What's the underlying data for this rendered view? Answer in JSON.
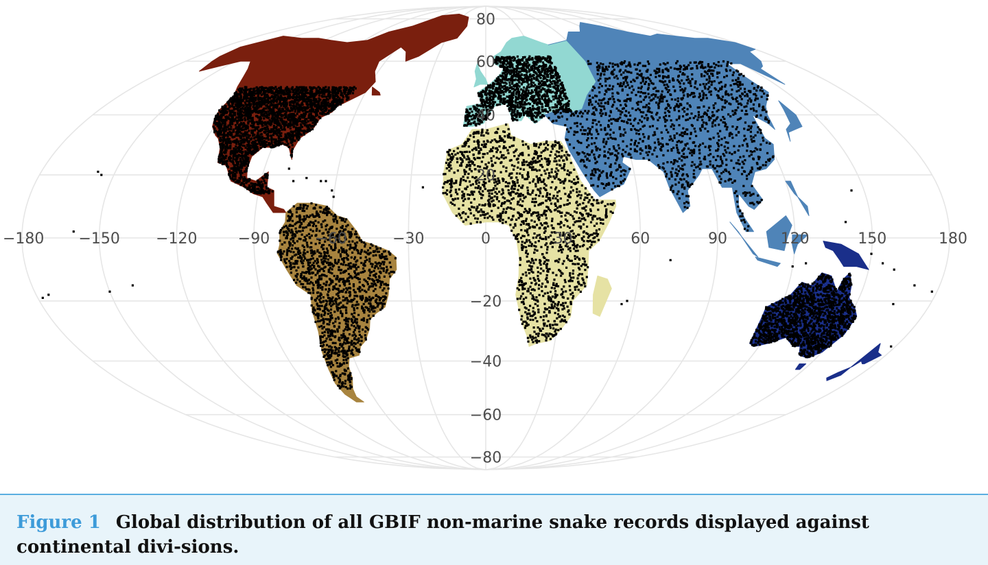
{
  "figure": {
    "label": "Figure 1",
    "caption": "Global distribution of all GBIF non-marine snake records displayed against continental divi-sions."
  },
  "map": {
    "projection": "mollweide",
    "longitude_ticks": [
      "−180",
      "−150",
      "−120",
      "−90",
      "−60",
      "−30",
      "0",
      "30",
      "60",
      "90",
      "120",
      "150",
      "180"
    ],
    "latitude_ticks": [
      "80",
      "60",
      "40",
      "20",
      "−20",
      "−40",
      "−60",
      "−80"
    ],
    "colors": {
      "north_america": "#7a1f0e",
      "south_america": "#a8843f",
      "europe": "#92d8d2",
      "africa": "#e6e2a4",
      "asia": "#4f84b8",
      "oceania": "#1a2f8a",
      "records": "#000000",
      "graticule": "#e6e6e6"
    },
    "layers": [
      {
        "name": "north-america-region",
        "continent": "North America"
      },
      {
        "name": "south-america-region",
        "continent": "South America"
      },
      {
        "name": "europe-region",
        "continent": "Europe"
      },
      {
        "name": "africa-region",
        "continent": "Africa"
      },
      {
        "name": "asia-region",
        "continent": "Asia"
      },
      {
        "name": "oceania-region",
        "continent": "Oceania"
      }
    ]
  }
}
